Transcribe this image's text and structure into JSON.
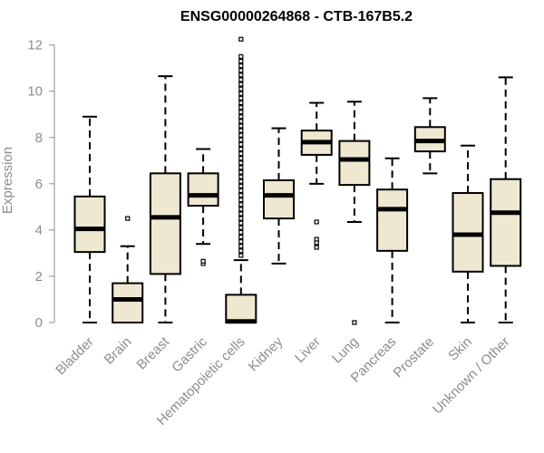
{
  "chart_data": {
    "type": "box",
    "title": "ENSG00000264868 - CTB-167B5.2",
    "xlabel": "",
    "ylabel": "Expression",
    "ylim": [
      0,
      12.3
    ],
    "yticks": [
      0,
      2,
      4,
      6,
      8,
      10,
      12
    ],
    "grid": false,
    "box_color": "#efe8d0",
    "categories": [
      "Bladder",
      "Brain",
      "Breast",
      "Gastric",
      "Hematopoietic cells",
      "Kidney",
      "Liver",
      "Lung",
      "Pancreas",
      "Prostate",
      "Skin",
      "Unknown / Other"
    ],
    "boxes": [
      {
        "category": "Bladder",
        "whisker_low": 0,
        "q1": 3.05,
        "median": 4.05,
        "q3": 5.45,
        "whisker_high": 8.9,
        "outliers": []
      },
      {
        "category": "Brain",
        "whisker_low": 0,
        "q1": 0,
        "median": 1.0,
        "q3": 1.7,
        "whisker_high": 3.3,
        "outliers": [
          4.5
        ]
      },
      {
        "category": "Breast",
        "whisker_low": 0,
        "q1": 2.1,
        "median": 4.55,
        "q3": 6.45,
        "whisker_high": 10.65,
        "outliers": []
      },
      {
        "category": "Gastric",
        "whisker_low": 3.4,
        "q1": 5.05,
        "median": 5.5,
        "q3": 6.45,
        "whisker_high": 7.5,
        "outliers": [
          2.55,
          2.65
        ]
      },
      {
        "category": "Hematopoietic cells",
        "whisker_low": 0,
        "q1": 0,
        "median": 0.05,
        "q3": 1.2,
        "whisker_high": 2.7,
        "outliers": [
          12.25,
          11.5,
          11.3,
          11.1,
          10.9,
          10.7,
          10.5,
          10.3,
          10.1,
          9.9,
          9.7,
          9.5,
          9.3,
          9.1,
          8.9,
          8.7,
          8.5,
          8.3,
          8.1,
          7.9,
          7.7,
          7.5,
          7.3,
          7.1,
          6.9,
          6.7,
          6.5,
          6.3,
          6.1,
          5.9,
          5.7,
          5.5,
          5.3,
          5.1,
          4.9,
          4.7,
          4.5,
          4.3,
          4.1,
          3.9,
          3.7,
          3.5,
          3.3,
          3.1,
          2.9
        ]
      },
      {
        "category": "Kidney",
        "whisker_low": 2.55,
        "q1": 4.5,
        "median": 5.5,
        "q3": 6.15,
        "whisker_high": 8.4,
        "outliers": []
      },
      {
        "category": "Liver",
        "whisker_low": 6.0,
        "q1": 7.25,
        "median": 7.8,
        "q3": 8.3,
        "whisker_high": 9.5,
        "outliers": [
          4.35,
          3.6,
          3.45,
          3.25
        ]
      },
      {
        "category": "Lung",
        "whisker_low": 4.35,
        "q1": 5.95,
        "median": 7.05,
        "q3": 7.85,
        "whisker_high": 9.55,
        "outliers": [
          0
        ]
      },
      {
        "category": "Pancreas",
        "whisker_low": 0,
        "q1": 3.1,
        "median": 4.9,
        "q3": 5.75,
        "whisker_high": 7.1,
        "outliers": []
      },
      {
        "category": "Prostate",
        "whisker_low": 6.45,
        "q1": 7.4,
        "median": 7.85,
        "q3": 8.45,
        "whisker_high": 9.7,
        "outliers": []
      },
      {
        "category": "Skin",
        "whisker_low": 0,
        "q1": 2.2,
        "median": 3.8,
        "q3": 5.6,
        "whisker_high": 7.65,
        "outliers": []
      },
      {
        "category": "Unknown / Other",
        "whisker_low": 0,
        "q1": 2.45,
        "median": 4.75,
        "q3": 6.2,
        "whisker_high": 10.6,
        "outliers": []
      }
    ]
  }
}
